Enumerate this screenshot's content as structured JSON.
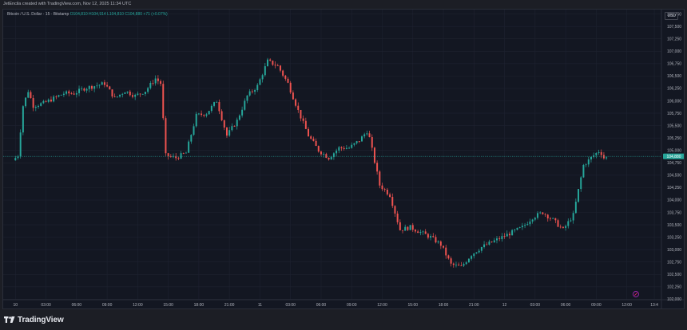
{
  "header": {
    "credit": "JetEncila created with TradingView.com, Nov 12, 2025 11:34 UTC"
  },
  "legend": {
    "title": "Bitcoin / U.S. Dollar · 15 · Bitstamp",
    "open": "O104,810",
    "high": "H104,914",
    "low": "L104,810",
    "close": "C104,880",
    "change": "+71 (+0.07%)"
  },
  "currency_badge": "USD",
  "footer": {
    "brand": "TradingView"
  },
  "colors": {
    "up": "#26a69a",
    "down": "#ef5350",
    "background": "#131722",
    "grid": "#1e2230",
    "last_price_line": "#26a69a"
  },
  "chart_data": {
    "type": "candlestick",
    "interval": "15",
    "symbol": "BTC/USD",
    "exchange": "Bitstamp",
    "ylim": [
      101990,
      107840
    ],
    "y_ticks": [
      "107,750",
      "107,500",
      "107,250",
      "107,000",
      "106,750",
      "106,500",
      "106,250",
      "106,000",
      "105,750",
      "105,500",
      "105,250",
      "105,000",
      "104,750",
      "104,500",
      "104,250",
      "104,000",
      "103,750",
      "103,500",
      "103,250",
      "103,000",
      "102,750",
      "102,500",
      "102,250",
      "102,000"
    ],
    "x_ticks": [
      "10",
      "03:00",
      "06:00",
      "09:00",
      "12:00",
      "15:00",
      "18:00",
      "21:00",
      "11",
      "03:00",
      "06:00",
      "09:00",
      "12:00",
      "15:00",
      "18:00",
      "21:00",
      "12",
      "03:00",
      "06:00",
      "09:00",
      "12:00",
      "13:4"
    ],
    "x_tick_hours": [
      0,
      3,
      6,
      9,
      12,
      15,
      18,
      21,
      24,
      27,
      30,
      33,
      36,
      39,
      42,
      45,
      48,
      51,
      54,
      57,
      60,
      62.7
    ],
    "x_hour_range": [
      -1.2,
      63.4
    ],
    "last_price": 104880,
    "last_price_label": "104,880",
    "price_path_points": [
      [
        0,
        104800
      ],
      [
        0.5,
        104900
      ],
      [
        1,
        105900
      ],
      [
        1.5,
        106200
      ],
      [
        2,
        105900
      ],
      [
        3,
        105950
      ],
      [
        4,
        106050
      ],
      [
        5,
        106150
      ],
      [
        6,
        106150
      ],
      [
        7,
        106250
      ],
      [
        8,
        106300
      ],
      [
        9,
        106350
      ],
      [
        10,
        106050
      ],
      [
        11,
        106200
      ],
      [
        12,
        106100
      ],
      [
        13,
        106200
      ],
      [
        14,
        106450
      ],
      [
        14.5,
        106350
      ],
      [
        15,
        104900
      ],
      [
        16,
        104850
      ],
      [
        17,
        104950
      ],
      [
        18,
        105700
      ],
      [
        19,
        105750
      ],
      [
        20,
        106000
      ],
      [
        21,
        105300
      ],
      [
        22,
        105600
      ],
      [
        23,
        106100
      ],
      [
        24,
        106300
      ],
      [
        25,
        106800
      ],
      [
        26,
        106700
      ],
      [
        27,
        106350
      ],
      [
        28,
        105800
      ],
      [
        29,
        105300
      ],
      [
        30,
        105000
      ],
      [
        31,
        104850
      ],
      [
        32,
        105050
      ],
      [
        33,
        105050
      ],
      [
        34,
        105200
      ],
      [
        34.8,
        105400
      ],
      [
        35,
        105250
      ],
      [
        36,
        104300
      ],
      [
        37,
        104100
      ],
      [
        38,
        103400
      ],
      [
        39,
        103450
      ],
      [
        40,
        103350
      ],
      [
        41,
        103250
      ],
      [
        42,
        103100
      ],
      [
        43,
        102700
      ],
      [
        44,
        102650
      ],
      [
        45,
        102900
      ],
      [
        46,
        103050
      ],
      [
        47,
        103150
      ],
      [
        48,
        103250
      ],
      [
        49,
        103350
      ],
      [
        50,
        103450
      ],
      [
        51,
        103650
      ],
      [
        52,
        103750
      ],
      [
        53,
        103600
      ],
      [
        54,
        103400
      ],
      [
        55,
        103700
      ],
      [
        56,
        104700
      ],
      [
        57,
        104900
      ],
      [
        57.6,
        105000
      ],
      [
        58,
        104850
      ]
    ]
  }
}
